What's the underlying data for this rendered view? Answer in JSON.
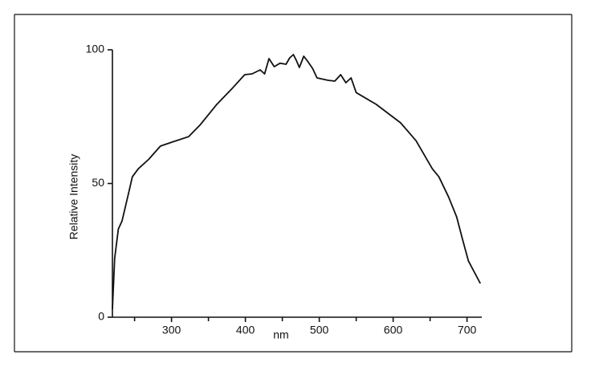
{
  "chart_data": {
    "type": "line",
    "y_label": "Relative Intensity",
    "x_label": "nm",
    "xlim": [
      220,
      720
    ],
    "ylim": [
      0,
      100
    ],
    "xticks": [
      300,
      400,
      500,
      600,
      700
    ],
    "xminor_ticks": [
      250,
      350,
      450,
      550,
      650
    ],
    "yticks": [
      0,
      50,
      100
    ],
    "color": "#111111",
    "x": [
      220,
      223,
      228,
      233,
      242,
      247,
      255,
      269,
      285,
      301,
      323,
      339,
      361,
      382,
      399,
      409,
      420,
      426,
      432,
      439,
      447,
      455,
      460,
      465,
      469,
      473,
      479,
      484,
      491,
      497,
      512,
      521,
      529,
      536,
      543,
      550,
      577,
      610,
      631,
      653,
      662,
      675,
      686,
      694,
      702,
      718
    ],
    "values": [
      3,
      22,
      33,
      36,
      46.5,
      52.5,
      55.5,
      59,
      64,
      65.5,
      67.5,
      72,
      79.5,
      85.5,
      90.7,
      91,
      92.5,
      91,
      96.7,
      93.7,
      95,
      94.6,
      97,
      98.2,
      96,
      93.4,
      97.6,
      95.8,
      93,
      89.5,
      88.6,
      88.3,
      90.7,
      87.7,
      89.5,
      84,
      79.6,
      72.7,
      66,
      55.5,
      52.5,
      45,
      37.5,
      29,
      21,
      12.6
    ]
  }
}
